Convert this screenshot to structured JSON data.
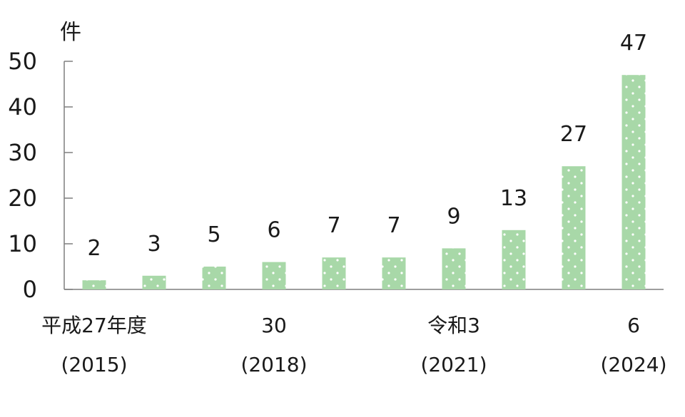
{
  "chart_data": {
    "type": "bar",
    "unit_label": "件",
    "categories": [
      "平成27年度",
      "",
      "",
      "30",
      "",
      "",
      "令和3",
      "",
      "",
      "6"
    ],
    "categories_sub": [
      "(2015)",
      "",
      "",
      "(2018)",
      "",
      "",
      "(2021)",
      "",
      "",
      "(2024)"
    ],
    "values": [
      2,
      3,
      5,
      6,
      7,
      7,
      9,
      13,
      27,
      47
    ],
    "ylim": [
      0,
      50
    ],
    "yticks": [
      0,
      10,
      20,
      30,
      40,
      50
    ],
    "grid": false,
    "legend": "none",
    "bar_color": "#a8d8a8",
    "bar_pattern": "dotted-white",
    "axis_color": "#7f7f7f",
    "text_color": "#1a1a1a"
  }
}
